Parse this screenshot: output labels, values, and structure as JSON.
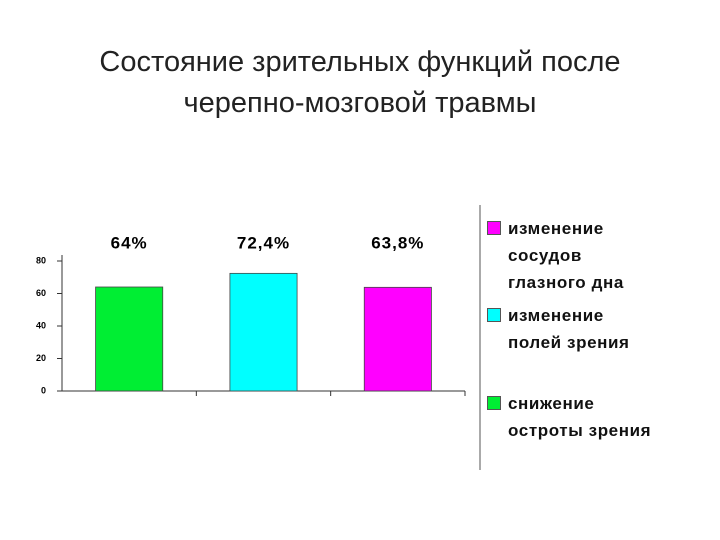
{
  "chart_data": {
    "type": "bar",
    "title": "Состояние зрительных функций после черепно-мозговой травмы",
    "categories": [
      null,
      null,
      null
    ],
    "series": [
      {
        "name": "снижение\nостроты зрения",
        "color": "#00ee33",
        "values": [
          64,
          null,
          null
        ],
        "value_labels": [
          "64%",
          null,
          null
        ]
      },
      {
        "name": "изменение\nполей зрения",
        "color": "#00ffff",
        "values": [
          null,
          72.4,
          null
        ],
        "value_labels": [
          null,
          "72,4%",
          null
        ]
      },
      {
        "name": "изменение\nсосудов\nглазного дна",
        "color": "#ff00ff",
        "values": [
          null,
          null,
          63.8
        ],
        "value_labels": [
          null,
          null,
          "63,8%"
        ]
      }
    ],
    "ylim": [
      0,
      80
    ],
    "yticks": [
      0,
      20,
      40,
      60,
      80
    ],
    "grid": false
  }
}
